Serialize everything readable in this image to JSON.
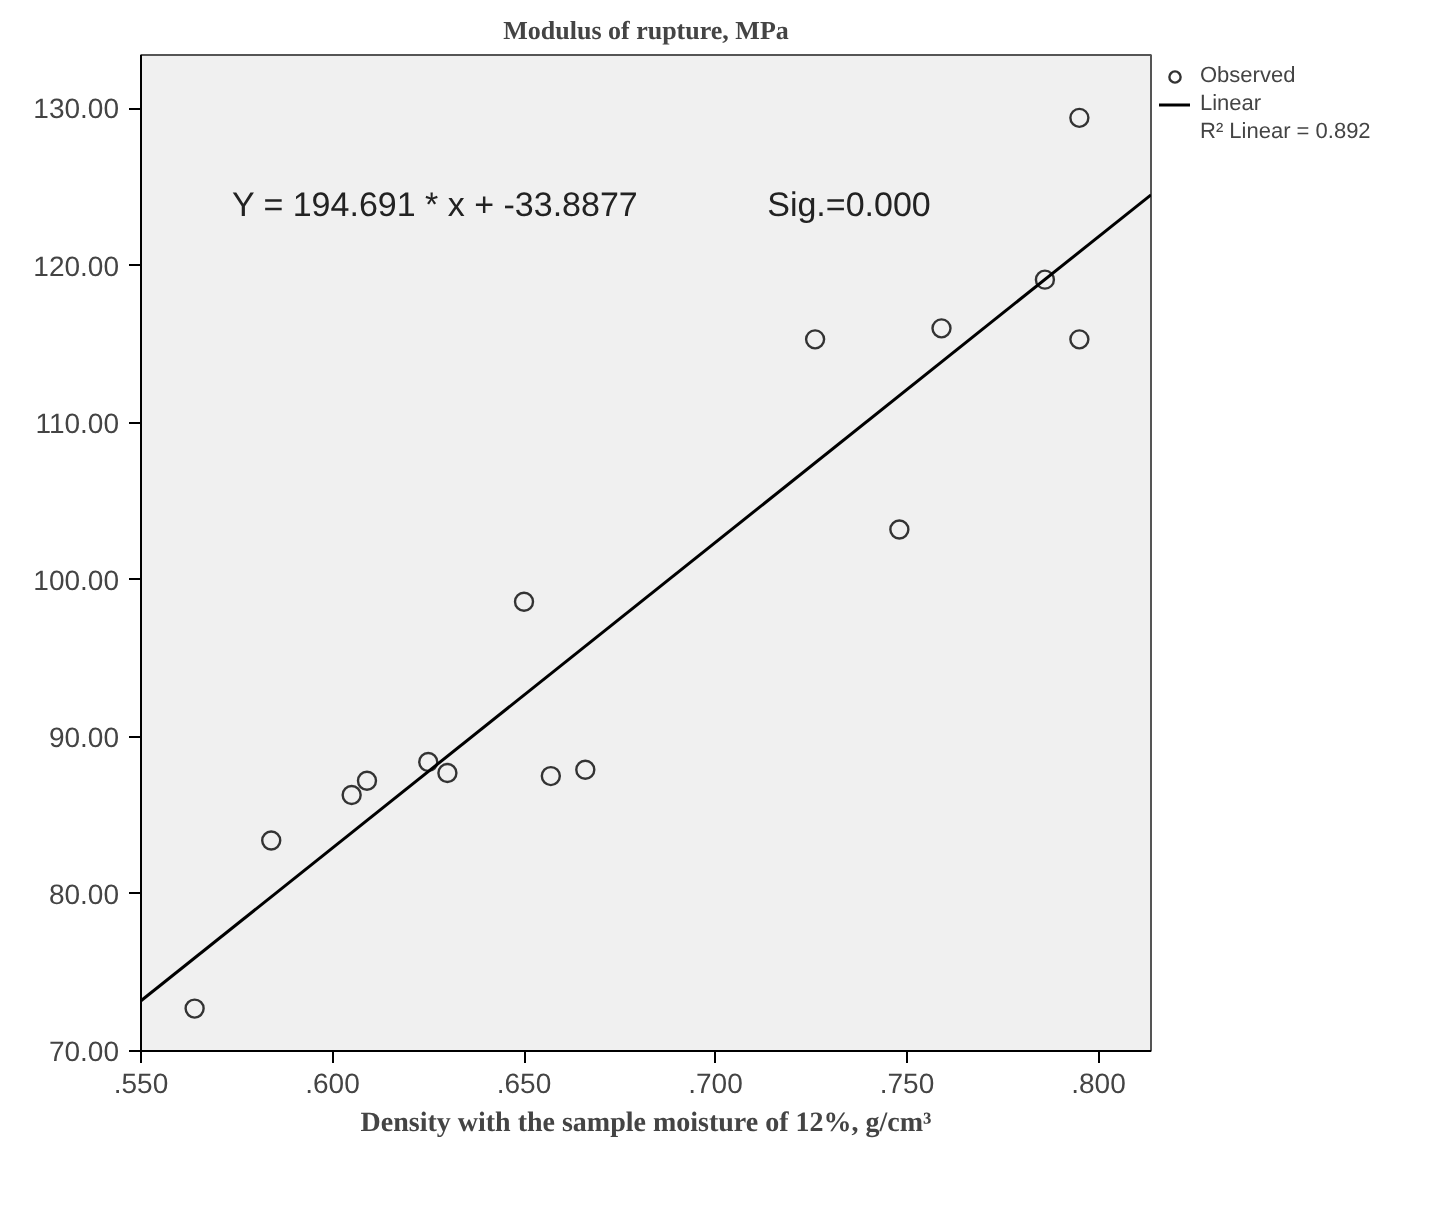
{
  "chart_data": {
    "type": "scatter",
    "title": "Modulus of rupture, MPa",
    "xlabel": "Density with the sample moisture of 12%, g/cm³",
    "xlim": [
      0.55,
      0.8137
    ],
    "ylim": [
      70,
      133.4
    ],
    "xticks": [
      {
        "value": 0.55,
        "label": ".550"
      },
      {
        "value": 0.6,
        "label": ".600"
      },
      {
        "value": 0.65,
        "label": ".650"
      },
      {
        "value": 0.7,
        "label": ".700"
      },
      {
        "value": 0.75,
        "label": ".750"
      },
      {
        "value": 0.8,
        "label": ".800"
      }
    ],
    "yticks": [
      {
        "value": 70,
        "label": "70.00"
      },
      {
        "value": 80,
        "label": "80.00"
      },
      {
        "value": 90,
        "label": "90.00"
      },
      {
        "value": 100,
        "label": "100.00"
      },
      {
        "value": 110,
        "label": "110.00"
      },
      {
        "value": 120,
        "label": "120.00"
      },
      {
        "value": 130,
        "label": "130.00"
      }
    ],
    "grid": false,
    "legend": "top right",
    "series": [
      {
        "name": "Observed",
        "marker": "circle",
        "color": "#333333",
        "x": [
          0.564,
          0.584,
          0.605,
          0.609,
          0.625,
          0.63,
          0.65,
          0.657,
          0.666,
          0.726,
          0.748,
          0.759,
          0.786,
          0.795,
          0.795
        ],
        "values": [
          72.7,
          83.4,
          86.3,
          87.2,
          88.4,
          87.7,
          98.6,
          87.5,
          87.9,
          115.3,
          103.2,
          116.0,
          119.1,
          129.4,
          115.3
        ]
      },
      {
        "name": "Linear",
        "type": "line",
        "color": "#000000",
        "line_style": "solid",
        "x": [
          0.55,
          0.8137
        ],
        "values": [
          73.2,
          124.5
        ]
      }
    ],
    "annotations": [
      "Y = 194.691 * x + -33.8877",
      "Sig.=0.000",
      "R² Linear = 0.892"
    ]
  }
}
